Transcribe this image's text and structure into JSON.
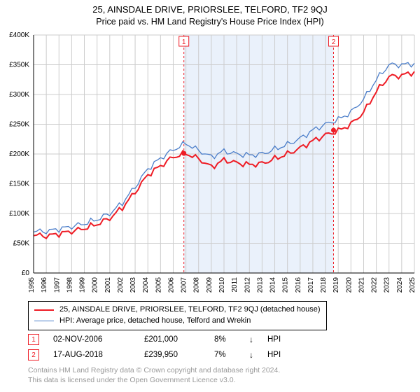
{
  "title_line1": "25, AINSDALE DRIVE, PRIORSLEE, TELFORD, TF2 9QJ",
  "title_line2": "Price paid vs. HM Land Registry's House Price Index (HPI)",
  "chart": {
    "type": "line",
    "background_color": "#ffffff",
    "grid_color": "#cccccc",
    "shade_color": "#eaf1fb",
    "x_years": [
      1995,
      1996,
      1997,
      1998,
      1999,
      2000,
      2001,
      2002,
      2003,
      2004,
      2005,
      2006,
      2007,
      2008,
      2009,
      2010,
      2011,
      2012,
      2013,
      2014,
      2015,
      2016,
      2017,
      2018,
      2019,
      2020,
      2021,
      2022,
      2023,
      2024,
      2025
    ],
    "ylim": [
      0,
      400000
    ],
    "ytick_step": 50000,
    "ytick_labels": [
      "£0",
      "£50K",
      "£100K",
      "£150K",
      "£200K",
      "£250K",
      "£300K",
      "£350K",
      "£400K"
    ],
    "shade_from": 2006.84,
    "shade_to": 2018.63,
    "series_red": {
      "label": "25, AINSDALE DRIVE, PRIORSLEE, TELFORD, TF2 9QJ (detached house)",
      "color": "#ee1c25",
      "width": 2,
      "y_by_year": {
        "1995": 64000,
        "1996": 62000,
        "1997": 66000,
        "1998": 70000,
        "1999": 75000,
        "2000": 82000,
        "2001": 92000,
        "2002": 110000,
        "2003": 136000,
        "2004": 165000,
        "2005": 180000,
        "2006": 195000,
        "2007": 201000,
        "2008": 192000,
        "2009": 178000,
        "2010": 190000,
        "2011": 185000,
        "2012": 182000,
        "2013": 184000,
        "2014": 192000,
        "2015": 200000,
        "2016": 210000,
        "2017": 222000,
        "2018": 232000,
        "2019": 239000,
        "2020": 250000,
        "2021": 270000,
        "2022": 305000,
        "2023": 330000,
        "2024": 332000,
        "2025": 338000
      }
    },
    "series_blue": {
      "label": "HPI: Average price, detached house, Telford and Wrekin",
      "color": "#4a7dc9",
      "width": 1.3,
      "y_by_year": {
        "1995": 70000,
        "1996": 70000,
        "1997": 74000,
        "1998": 78000,
        "1999": 83000,
        "2000": 90000,
        "2001": 100000,
        "2002": 118000,
        "2003": 145000,
        "2004": 175000,
        "2005": 193000,
        "2006": 207000,
        "2007": 218000,
        "2008": 206000,
        "2009": 195000,
        "2010": 205000,
        "2011": 200000,
        "2012": 198000,
        "2013": 200000,
        "2014": 208000,
        "2015": 216000,
        "2016": 226000,
        "2017": 240000,
        "2018": 250000,
        "2019": 258000,
        "2020": 270000,
        "2021": 292000,
        "2022": 325000,
        "2023": 350000,
        "2024": 350000,
        "2025": 352000
      }
    },
    "markers": [
      {
        "n": "1",
        "x": 2006.84,
        "y": 201000
      },
      {
        "n": "2",
        "x": 2018.63,
        "y": 239950
      }
    ],
    "marker_color": "#ee1c25",
    "label_fontsize": 10,
    "axis_color": "#000000"
  },
  "legend": {
    "border_color": "#000000"
  },
  "transactions": [
    {
      "n": "1",
      "date": "02-NOV-2006",
      "price": "£201,000",
      "pct": "8%",
      "dir": "↓",
      "vs": "HPI"
    },
    {
      "n": "2",
      "date": "17-AUG-2018",
      "price": "£239,950",
      "pct": "7%",
      "dir": "↓",
      "vs": "HPI"
    }
  ],
  "footer_line1": "Contains HM Land Registry data © Crown copyright and database right 2024.",
  "footer_line2": "This data is licensed under the Open Government Licence v3.0."
}
